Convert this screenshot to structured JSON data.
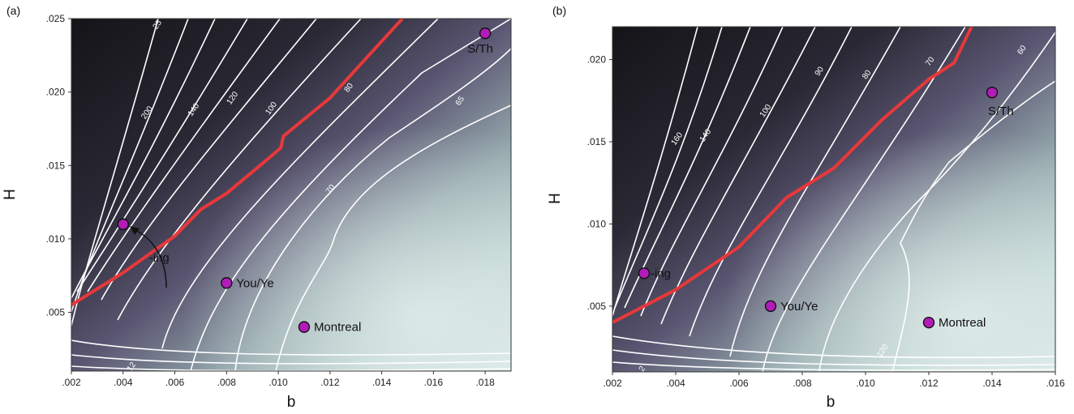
{
  "chart_data": [
    {
      "type": "contour",
      "panel_label": "(a)",
      "xlabel": "b",
      "ylabel": "H",
      "xlim": [
        0.002,
        0.019
      ],
      "ylim": [
        0.001,
        0.025
      ],
      "xticks": [
        ".002",
        ".004",
        ".006",
        ".008",
        ".010",
        ".012",
        ".014",
        ".016",
        ".018"
      ],
      "xtick_values": [
        0.002,
        0.004,
        0.006,
        0.008,
        0.01,
        0.012,
        0.014,
        0.016,
        0.018
      ],
      "yticks": [
        ".005",
        ".010",
        ".015",
        ".020",
        ".025"
      ],
      "ytick_values": [
        0.005,
        0.01,
        0.015,
        0.02,
        0.025
      ],
      "contour_labels": [
        {
          "text": "25",
          "b": 0.0054,
          "H": 0.0245
        },
        {
          "text": "200",
          "b": 0.005,
          "H": 0.0185
        },
        {
          "text": "140",
          "b": 0.0068,
          "H": 0.0187
        },
        {
          "text": "120",
          "b": 0.0083,
          "H": 0.0195
        },
        {
          "text": "100",
          "b": 0.0098,
          "H": 0.0188
        },
        {
          "text": "80",
          "b": 0.0128,
          "H": 0.0202
        },
        {
          "text": "65",
          "b": 0.0171,
          "H": 0.0193
        },
        {
          "text": "70",
          "b": 0.0121,
          "H": 0.0133
        },
        {
          "text": "12",
          "b": 0.0044,
          "H": 0.0012
        }
      ],
      "boundary_line": [
        [
          0.002,
          0.0055
        ],
        [
          0.004,
          0.0077
        ],
        [
          0.006,
          0.0102
        ],
        [
          0.007,
          0.012
        ],
        [
          0.008,
          0.0131
        ],
        [
          0.0095,
          0.0153
        ],
        [
          0.0101,
          0.0162
        ],
        [
          0.0102,
          0.017
        ],
        [
          0.012,
          0.0196
        ],
        [
          0.0135,
          0.0225
        ],
        [
          0.0148,
          0.025
        ]
      ],
      "points": [
        {
          "label": "S/Th",
          "b": 0.018,
          "H": 0.024
        },
        {
          "label": "-ing",
          "b": 0.004,
          "H": 0.011
        },
        {
          "label": "You/Ye",
          "b": 0.008,
          "H": 0.007
        },
        {
          "label": "Montreal",
          "b": 0.011,
          "H": 0.004
        }
      ]
    },
    {
      "type": "contour",
      "panel_label": "(b)",
      "xlabel": "b",
      "ylabel": "H",
      "xlim": [
        0.002,
        0.016
      ],
      "ylim": [
        0.001,
        0.022
      ],
      "xticks": [
        ".002",
        ".004",
        ".006",
        ".008",
        ".010",
        ".012",
        ".014",
        ".016"
      ],
      "xtick_values": [
        0.002,
        0.004,
        0.006,
        0.008,
        0.01,
        0.012,
        0.014,
        0.016
      ],
      "yticks": [
        ".005",
        ".010",
        ".015",
        ".020"
      ],
      "ytick_values": [
        0.005,
        0.01,
        0.015,
        0.02
      ],
      "contour_labels": [
        {
          "text": "160",
          "b": 0.0041,
          "H": 0.0151
        },
        {
          "text": "140",
          "b": 0.005,
          "H": 0.0153
        },
        {
          "text": "100",
          "b": 0.0069,
          "H": 0.0168
        },
        {
          "text": "90",
          "b": 0.0086,
          "H": 0.0192
        },
        {
          "text": "80",
          "b": 0.0101,
          "H": 0.019
        },
        {
          "text": "70",
          "b": 0.0121,
          "H": 0.0198
        },
        {
          "text": "60",
          "b": 0.015,
          "H": 0.0205
        },
        {
          "text": "120",
          "b": 0.0106,
          "H": 0.0022
        },
        {
          "text": "2",
          "b": 0.003,
          "H": 0.0011
        }
      ],
      "boundary_line": [
        [
          0.002,
          0.004
        ],
        [
          0.004,
          0.006
        ],
        [
          0.006,
          0.0086
        ],
        [
          0.0075,
          0.0116
        ],
        [
          0.009,
          0.0134
        ],
        [
          0.0105,
          0.0163
        ],
        [
          0.012,
          0.0188
        ],
        [
          0.0128,
          0.0198
        ],
        [
          0.0131,
          0.021
        ],
        [
          0.0134,
          0.0222
        ]
      ],
      "points": [
        {
          "label": "S/Th",
          "b": 0.014,
          "H": 0.018
        },
        {
          "label": "-ing",
          "b": 0.003,
          "H": 0.007
        },
        {
          "label": "You/Ye",
          "b": 0.007,
          "H": 0.005
        },
        {
          "label": "Montreal",
          "b": 0.012,
          "H": 0.004
        }
      ]
    }
  ],
  "colors": {
    "boundary": "#e8383a",
    "point_fill": "#b21cb8",
    "contour": "#ffffff",
    "dark": "#1c1c22",
    "mid": "#5b5474",
    "light": "#d8e8e6"
  }
}
